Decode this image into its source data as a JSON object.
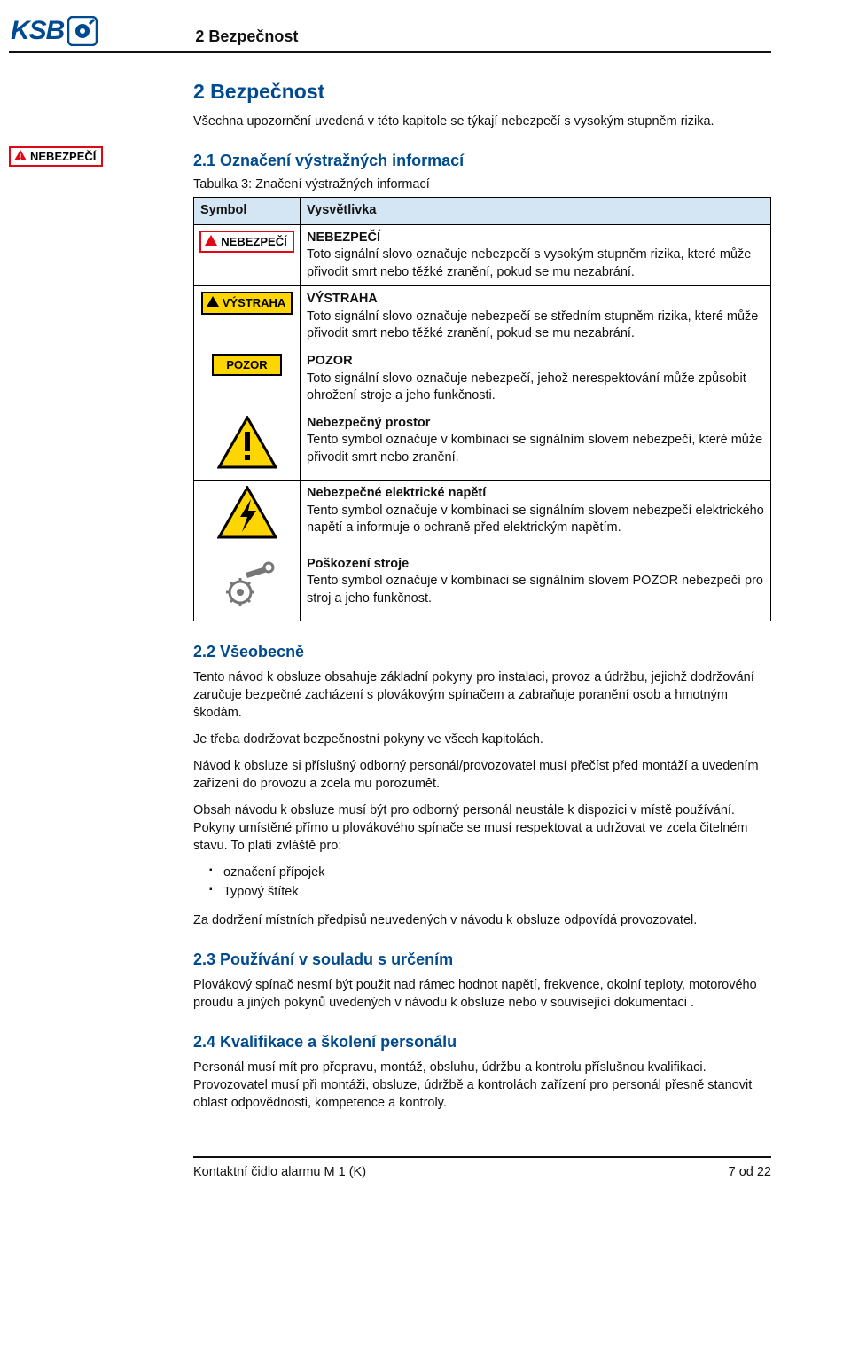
{
  "header": {
    "logo_text": "KSB",
    "chapter": "2 Bezpečnost"
  },
  "margin_badge": {
    "label": "NEBEZPEČÍ"
  },
  "section": {
    "number_title": "2  Bezpečnost",
    "intro": "Všechna upozornění uvedená v této kapitole se týkají nebezpečí s vysokým stupněm rizika."
  },
  "sub21": {
    "title": "2.1  Označení výstražných informací",
    "table_caption": "Tabulka 3: Značení výstražných informací",
    "th_symbol": "Symbol",
    "th_desc": "Vysvětlivka",
    "rows": [
      {
        "badge": "NEBEZPEČÍ",
        "badge_style": "red",
        "icon": "warn-tri-red",
        "title": "NEBEZPEČÍ",
        "text": "Toto signální slovo označuje nebezpečí s vysokým stupněm rizika, které může přivodit smrt nebo těžké zranění, pokud se mu nezabrání."
      },
      {
        "badge": "VÝSTRAHA",
        "badge_style": "yellow",
        "icon": "warn-tri-yellow",
        "title": "VÝSTRAHA",
        "text": "Toto signální slovo označuje nebezpečí se středním stupněm rizika, které může přivodit smrt nebo těžké zranění, pokud se mu nezabrání."
      },
      {
        "badge": "POZOR",
        "badge_style": "pozor-solid",
        "icon": "",
        "title": "POZOR",
        "text": "Toto signální slovo označuje nebezpečí, jehož nerespektování může způsobit ohrožení stroje a jeho funkčnosti."
      },
      {
        "badge": "",
        "icon": "triangle-exclaim",
        "title": "Nebezpečný prostor",
        "text": "Tento symbol označuje v kombinaci se signálním slovem nebezpečí, které může přivodit smrt nebo zranění."
      },
      {
        "badge": "",
        "icon": "triangle-bolt",
        "title": "Nebezpečné elektrické napětí",
        "text": "Tento symbol označuje v kombinaci se signálním slovem nebezpečí elektrického napětí a informuje o ochraně před elektrickým napětím."
      },
      {
        "badge": "",
        "icon": "gear-wrench",
        "title": "Poškození stroje",
        "text": "Tento symbol označuje v kombinaci se signálním slovem POZOR nebezpečí pro stroj a jeho funkčnost."
      }
    ]
  },
  "sub22": {
    "title": "2.2  Všeobecně",
    "p1": "Tento návod k obsluze obsahuje základní pokyny pro instalaci, provoz a údržbu, jejichž dodržování zaručuje bezpečné zacházení s plovákovým spínačem a zabraňuje poranění osob a hmotným škodám.",
    "p2": "Je třeba dodržovat bezpečnostní pokyny ve všech kapitolách.",
    "p3": "Návod k obsluze si příslušný odborný personál/provozovatel musí přečíst před montáží a uvedením zařízení do provozu a zcela mu porozumět.",
    "p4": "Obsah návodu k obsluze musí být pro odborný personál neustále k dispozici v místě používání. Pokyny umístěné přímo u plovákového spínače se musí respektovat a udržovat ve zcela čitelném stavu. To platí zvláště pro:",
    "b1": "označení přípojek",
    "b2": "Typový štítek",
    "p5": "Za dodržení místních předpisů neuvedených v návodu k obsluze odpovídá provozovatel."
  },
  "sub23": {
    "title": "2.3  Používání v souladu s určením",
    "p1": "Plovákový spínač nesmí být použit nad rámec hodnot napětí, frekvence, okolní teploty, motorového proudu a jiných pokynů uvedených v návodu k obsluze nebo v související dokumentaci ."
  },
  "sub24": {
    "title": "2.4  Kvalifikace a školení personálu",
    "p1": "Personál musí mít pro přepravu, montáž, obsluhu, údržbu a kontrolu příslušnou kvalifikaci. Provozovatel musí při montáži, obsluze, údržbě a kontrolách zařízení pro personál přesně stanovit oblast odpovědnosti, kompetence a kontroly."
  },
  "footer": {
    "left": "Kontaktní čidlo alarmu M 1 (K)",
    "right": "7 od 22"
  },
  "colors": {
    "brand": "#004a8f",
    "red": "#e30613",
    "yellow": "#fdd500",
    "thead": "#d4e5f3"
  }
}
